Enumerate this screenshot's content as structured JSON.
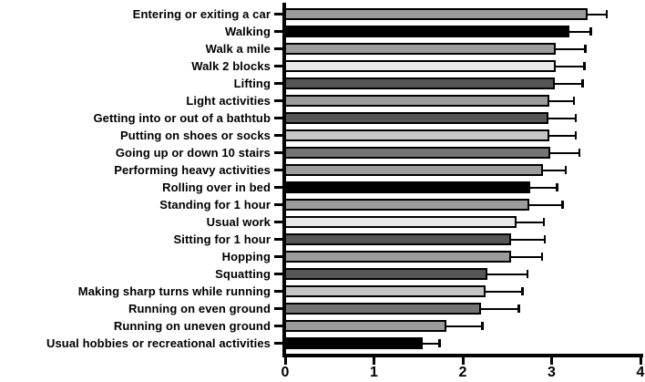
{
  "chart_data": {
    "type": "bar",
    "orientation": "horizontal",
    "title": "",
    "xlabel": "",
    "ylabel": "",
    "xlim": [
      0,
      4
    ],
    "x_ticks": [
      0,
      1,
      2,
      3,
      4
    ],
    "grid": false,
    "legend": false,
    "error_bars": "upper-only with end caps",
    "background_color": "#ffffff",
    "axis_color": "#000000",
    "bar_border_color": "#000000",
    "categories": [
      "Entering or exiting a car",
      "Walking",
      "Walk a mile",
      "Walk 2 blocks",
      "Lifting",
      "Light activities",
      "Getting into or out of a bathtub",
      "Putting on shoes or socks",
      "Going up or down 10 stairs",
      "Performing heavy activities",
      "Rolling over in bed",
      "Standing for 1 hour",
      "Usual work",
      "Sitting for 1 hour",
      "Hopping",
      "Squatting",
      "Making sharp turns while running",
      "Running on even ground",
      "Running on uneven ground",
      "Usual hobbies or recreational activities"
    ],
    "values": [
      3.41,
      3.2,
      3.05,
      3.05,
      3.04,
      2.97,
      2.96,
      2.97,
      2.98,
      2.9,
      2.76,
      2.75,
      2.61,
      2.54,
      2.54,
      2.28,
      2.26,
      2.2,
      1.82,
      1.55
    ],
    "errors_upper": [
      0.21,
      0.24,
      0.33,
      0.32,
      0.31,
      0.28,
      0.31,
      0.3,
      0.33,
      0.26,
      0.3,
      0.37,
      0.3,
      0.38,
      0.35,
      0.45,
      0.41,
      0.43,
      0.4,
      0.19
    ],
    "bar_colors": [
      "#9b9b9b",
      "#000000",
      "#9b9b9b",
      "#e9e9e9",
      "#565656",
      "#9b9b9b",
      "#565656",
      "#c6c6c6",
      "#747474",
      "#9b9b9b",
      "#000000",
      "#9b9b9b",
      "#e9e9e9",
      "#565656",
      "#9b9b9b",
      "#565656",
      "#c6c6c6",
      "#747474",
      "#9b9b9b",
      "#000000"
    ]
  }
}
